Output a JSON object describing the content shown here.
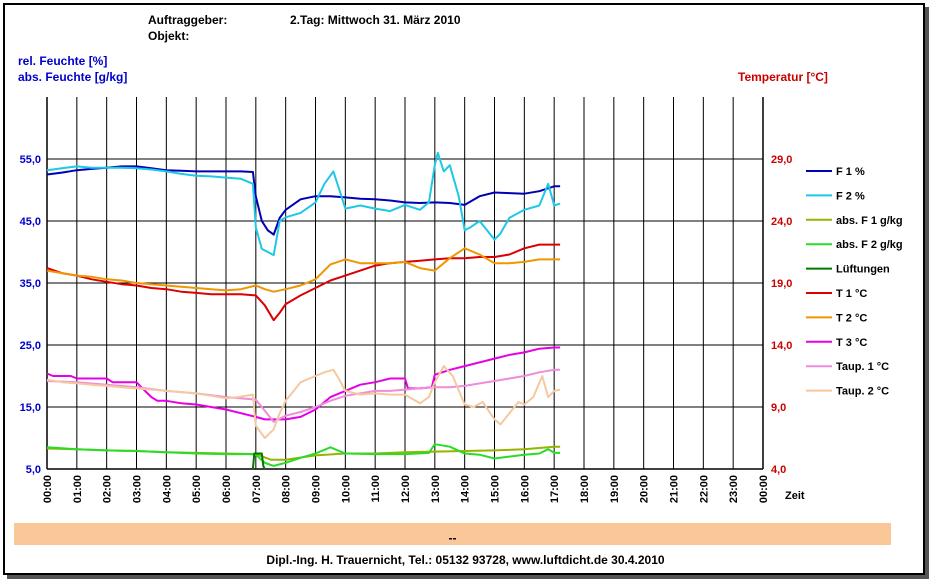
{
  "header": {
    "auftraggeber_label": "Auftraggeber:",
    "objekt_label": "Objekt:",
    "date": "2.Tag: Mittwoch 31. März 2010"
  },
  "axis_labels": {
    "left1": "rel. Feuchte [%]",
    "left2": "abs. Feuchte [g/kg]",
    "right": "Temperatur [°C]",
    "x": "Zeit"
  },
  "bar_text": "--",
  "footer": "Dipl.-Ing. H. Trauernicht, Tel.: 05132 93728, www.luftdicht.de 30.4.2010",
  "colors": {
    "F1": "#0000b4",
    "F2": "#1ec8e6",
    "absF1": "#96b400",
    "absF2": "#28dc28",
    "Lueftungen": "#007800",
    "T1": "#dc0000",
    "T2": "#f09600",
    "T3": "#e600e6",
    "Taup1": "#f08cdc",
    "Taup2": "#f5c8a0"
  },
  "chart_data": {
    "type": "line",
    "xlabel": "Zeit",
    "x_ticks": [
      "00:00",
      "01:00",
      "02:00",
      "03:00",
      "04:00",
      "05:00",
      "06:00",
      "07:00",
      "08:00",
      "09:00",
      "10:00",
      "11:00",
      "12:00",
      "13:00",
      "14:00",
      "15:00",
      "16:00",
      "17:00",
      "18:00",
      "19:00",
      "20:00",
      "21:00",
      "22:00",
      "23:00",
      "00:00"
    ],
    "xlim": [
      0,
      24
    ],
    "y_left": {
      "label": [
        "rel. Feuchte [%]",
        "abs. Feuchte [g/kg]"
      ],
      "ylim": [
        5,
        65
      ],
      "ticks": [
        "5,0",
        "15,0",
        "25,0",
        "35,0",
        "45,0",
        "55,0"
      ],
      "tick_values": [
        5,
        15,
        25,
        35,
        45,
        55
      ]
    },
    "y_right": {
      "label": "Temperatur [°C]",
      "ylim": [
        4,
        34
      ],
      "ticks": [
        "4,0",
        "9,0",
        "14,0",
        "19,0",
        "24,0",
        "29,0"
      ],
      "tick_values": [
        4,
        9,
        14,
        19,
        24,
        29
      ]
    },
    "grid": true,
    "legend_position": "right",
    "series": [
      {
        "key": "F1",
        "name": "F 1 %",
        "axis": "left",
        "x": [
          0,
          0.5,
          1,
          1.5,
          2,
          2.5,
          3,
          3.5,
          4,
          4.5,
          5,
          5.5,
          6,
          6.5,
          6.9,
          7.0,
          7.2,
          7.4,
          7.6,
          7.8,
          8.0,
          8.5,
          9,
          9.5,
          10,
          10.5,
          11,
          11.5,
          12,
          12.5,
          13,
          13.5,
          14,
          14.5,
          15,
          15.5,
          16,
          16.5,
          17,
          17.2
        ],
        "y": [
          52.5,
          52.8,
          53.2,
          53.4,
          53.6,
          53.8,
          53.8,
          53.5,
          53.2,
          53.1,
          53.0,
          53.0,
          53.0,
          53.0,
          52.9,
          49,
          45,
          43.5,
          42.8,
          45.5,
          46.8,
          48.5,
          49.0,
          49.0,
          48.8,
          48.6,
          48.5,
          48.3,
          48.0,
          47.9,
          48.0,
          47.9,
          47.6,
          49.0,
          49.6,
          49.5,
          49.4,
          49.8,
          50.6,
          50.6
        ]
      },
      {
        "key": "F2",
        "name": "F 2 %",
        "axis": "left",
        "x": [
          0,
          0.5,
          1,
          1.5,
          2,
          2.5,
          3,
          3.5,
          4,
          4.5,
          5,
          5.5,
          6,
          6.5,
          6.9,
          7.0,
          7.2,
          7.4,
          7.6,
          7.8,
          8.0,
          8.5,
          9.0,
          9.3,
          9.6,
          9.8,
          10,
          10.5,
          11,
          11.5,
          12,
          12.5,
          12.8,
          13.0,
          13.1,
          13.3,
          13.5,
          13.8,
          14.0,
          14.2,
          14.5,
          15,
          15.2,
          15.5,
          16,
          16.5,
          16.8,
          17.0,
          17.2
        ],
        "y": [
          53.2,
          53.5,
          53.8,
          53.6,
          53.6,
          53.6,
          53.5,
          53.3,
          53.0,
          52.6,
          52.3,
          52.2,
          52.0,
          51.8,
          51.0,
          44,
          40.5,
          40,
          39.5,
          45.0,
          45.6,
          46.3,
          48.0,
          51.0,
          53.0,
          50.0,
          47.0,
          47.5,
          47.0,
          46.6,
          47.6,
          46.8,
          48.0,
          54.0,
          56.0,
          53.0,
          54.0,
          49.0,
          43.5,
          44.0,
          45.0,
          42.0,
          43.0,
          45.5,
          46.8,
          47.5,
          51.0,
          47.5,
          47.8
        ]
      },
      {
        "key": "absF1",
        "name": "abs. F 1 g/kg",
        "axis": "left",
        "x": [
          0,
          1,
          2,
          3,
          4,
          5,
          6,
          7,
          7.5,
          8,
          9,
          10,
          11,
          12,
          13,
          14,
          15,
          16,
          17,
          17.2
        ],
        "y": [
          8.3,
          8.2,
          8.0,
          7.9,
          7.7,
          7.6,
          7.5,
          7.4,
          6.5,
          6.5,
          7.2,
          7.5,
          7.5,
          7.7,
          7.8,
          7.9,
          8.0,
          8.2,
          8.6,
          8.6
        ]
      },
      {
        "key": "absF2",
        "name": "abs. F 2 g/kg",
        "axis": "left",
        "x": [
          0,
          1,
          2,
          3,
          4,
          5,
          6,
          6.8,
          7.0,
          7.3,
          7.6,
          8.0,
          8.5,
          9.0,
          9.5,
          10,
          11,
          12,
          12.8,
          13.0,
          13.5,
          14,
          14.5,
          15,
          15.5,
          16,
          16.5,
          16.8,
          17.0,
          17.2
        ],
        "y": [
          8.5,
          8.2,
          8.0,
          7.9,
          7.7,
          7.5,
          7.4,
          7.4,
          7.3,
          6.0,
          5.5,
          6.0,
          6.8,
          7.5,
          8.5,
          7.5,
          7.4,
          7.4,
          7.6,
          9.0,
          8.6,
          7.5,
          7.3,
          6.7,
          7.0,
          7.3,
          7.5,
          8.2,
          7.6,
          7.6
        ]
      },
      {
        "key": "Lueftungen",
        "name": "Lüftungen",
        "axis": "left",
        "x": [
          6.9,
          6.95,
          7.2,
          7.25,
          7.3
        ],
        "y": [
          5.0,
          7.5,
          7.5,
          5.5,
          5.0
        ]
      },
      {
        "key": "T1",
        "name": "T 1 °C",
        "axis": "right",
        "x": [
          0,
          0.5,
          1,
          1.5,
          2,
          2.5,
          3,
          3.5,
          4,
          4.5,
          5,
          5.5,
          6,
          6.5,
          7.0,
          7.3,
          7.6,
          7.8,
          8.0,
          8.5,
          9,
          9.5,
          10,
          10.5,
          11,
          11.5,
          12,
          12.5,
          13,
          13.5,
          14,
          14.5,
          15,
          15.5,
          16,
          16.5,
          17,
          17.2
        ],
        "y": [
          20.2,
          19.8,
          19.6,
          19.3,
          19.1,
          18.9,
          18.8,
          18.6,
          18.5,
          18.3,
          18.2,
          18.1,
          18.1,
          18.1,
          18.0,
          17.2,
          16.0,
          16.6,
          17.3,
          18.0,
          18.6,
          19.2,
          19.6,
          20.0,
          20.4,
          20.6,
          20.7,
          20.8,
          20.9,
          21.0,
          21.0,
          21.1,
          21.1,
          21.3,
          21.8,
          22.1,
          22.1,
          22.1
        ]
      },
      {
        "key": "T2",
        "name": "T 2 °C",
        "axis": "right",
        "x": [
          0,
          0.5,
          1,
          1.5,
          2,
          2.5,
          3,
          3.5,
          4,
          4.5,
          5,
          5.5,
          6,
          6.5,
          7.0,
          7.3,
          7.6,
          8.0,
          8.5,
          9.0,
          9.5,
          10,
          10.5,
          11,
          11.5,
          12,
          12.5,
          13,
          13.5,
          14,
          14.5,
          15,
          15.5,
          16,
          16.5,
          17,
          17.2
        ],
        "y": [
          20.0,
          19.8,
          19.6,
          19.5,
          19.3,
          19.2,
          19.0,
          18.9,
          18.8,
          18.7,
          18.6,
          18.5,
          18.4,
          18.5,
          18.8,
          18.5,
          18.3,
          18.5,
          18.8,
          19.3,
          20.5,
          20.9,
          20.6,
          20.6,
          20.6,
          20.7,
          20.2,
          20.0,
          21.0,
          21.8,
          21.3,
          20.6,
          20.6,
          20.7,
          20.9,
          20.9,
          20.9
        ]
      },
      {
        "key": "T3",
        "name": "T 3 °C",
        "axis": "right",
        "x": [
          0,
          0.2,
          0.8,
          1.0,
          1.5,
          2.0,
          2.2,
          3.0,
          3.2,
          3.5,
          3.7,
          4.0,
          4.5,
          5.0,
          5.5,
          6.0,
          6.5,
          7.0,
          7.3,
          7.5,
          8.0,
          8.5,
          9.0,
          9.5,
          10.0,
          10.5,
          11.0,
          11.5,
          12.0,
          12.1,
          12.5,
          12.9,
          13.0,
          13.5,
          14,
          14.5,
          15,
          15.5,
          16,
          16.5,
          17,
          17.2
        ],
        "y": [
          11.7,
          11.5,
          11.5,
          11.3,
          11.3,
          11.3,
          11.0,
          11.0,
          10.5,
          9.8,
          9.5,
          9.5,
          9.3,
          9.2,
          9.0,
          8.8,
          8.5,
          8.2,
          8.0,
          8.0,
          8.0,
          8.2,
          8.8,
          9.8,
          10.3,
          10.8,
          11.0,
          11.3,
          11.3,
          10.5,
          10.5,
          10.6,
          11.6,
          12.0,
          12.3,
          12.6,
          12.9,
          13.2,
          13.4,
          13.7,
          13.8,
          13.8
        ]
      },
      {
        "key": "Taup1",
        "name": "Taup. 1 °C",
        "axis": "right",
        "x": [
          0,
          1,
          2,
          3,
          4,
          5,
          6,
          7.0,
          7.3,
          7.6,
          8.0,
          8.5,
          9,
          9.5,
          10,
          10.5,
          11,
          11.5,
          12,
          12.5,
          13,
          13.5,
          14,
          14.5,
          15,
          15.5,
          16,
          16.5,
          17,
          17.2
        ],
        "y": [
          11.1,
          11.0,
          10.8,
          10.6,
          10.3,
          10.1,
          9.8,
          9.6,
          8.7,
          7.8,
          8.3,
          8.6,
          9.0,
          9.5,
          9.9,
          10.1,
          10.3,
          10.3,
          10.4,
          10.5,
          10.6,
          10.6,
          10.7,
          10.9,
          11.1,
          11.3,
          11.5,
          11.8,
          12.0,
          12.0
        ]
      },
      {
        "key": "Taup2",
        "name": "Taup. 2 °C",
        "axis": "right",
        "x": [
          0,
          0.5,
          1,
          1.5,
          2,
          2.5,
          3,
          3.5,
          4,
          4.5,
          5,
          5.5,
          6,
          6.4,
          6.9,
          7.0,
          7.3,
          7.6,
          7.8,
          8.0,
          8.5,
          9.0,
          9.3,
          9.6,
          9.8,
          10.0,
          10.5,
          11,
          11.5,
          12,
          12.5,
          12.8,
          13.0,
          13.3,
          13.6,
          14.0,
          14.3,
          14.6,
          15.0,
          15.2,
          15.5,
          15.8,
          16.0,
          16.3,
          16.6,
          16.8,
          17.0,
          17.2
        ],
        "y": [
          11.2,
          11.0,
          10.9,
          10.8,
          10.7,
          10.6,
          10.5,
          10.4,
          10.3,
          10.2,
          10.1,
          9.9,
          9.7,
          9.8,
          10.0,
          7.5,
          6.5,
          7.2,
          8.5,
          9.5,
          11.0,
          11.5,
          11.8,
          12.0,
          11.2,
          10.3,
          10.0,
          10.1,
          10.0,
          10.0,
          9.3,
          9.8,
          11.0,
          12.3,
          11.5,
          9.2,
          9.0,
          9.4,
          8.0,
          7.6,
          8.5,
          9.4,
          9.2,
          9.8,
          11.5,
          9.8,
          10.3,
          10.4
        ]
      }
    ]
  }
}
